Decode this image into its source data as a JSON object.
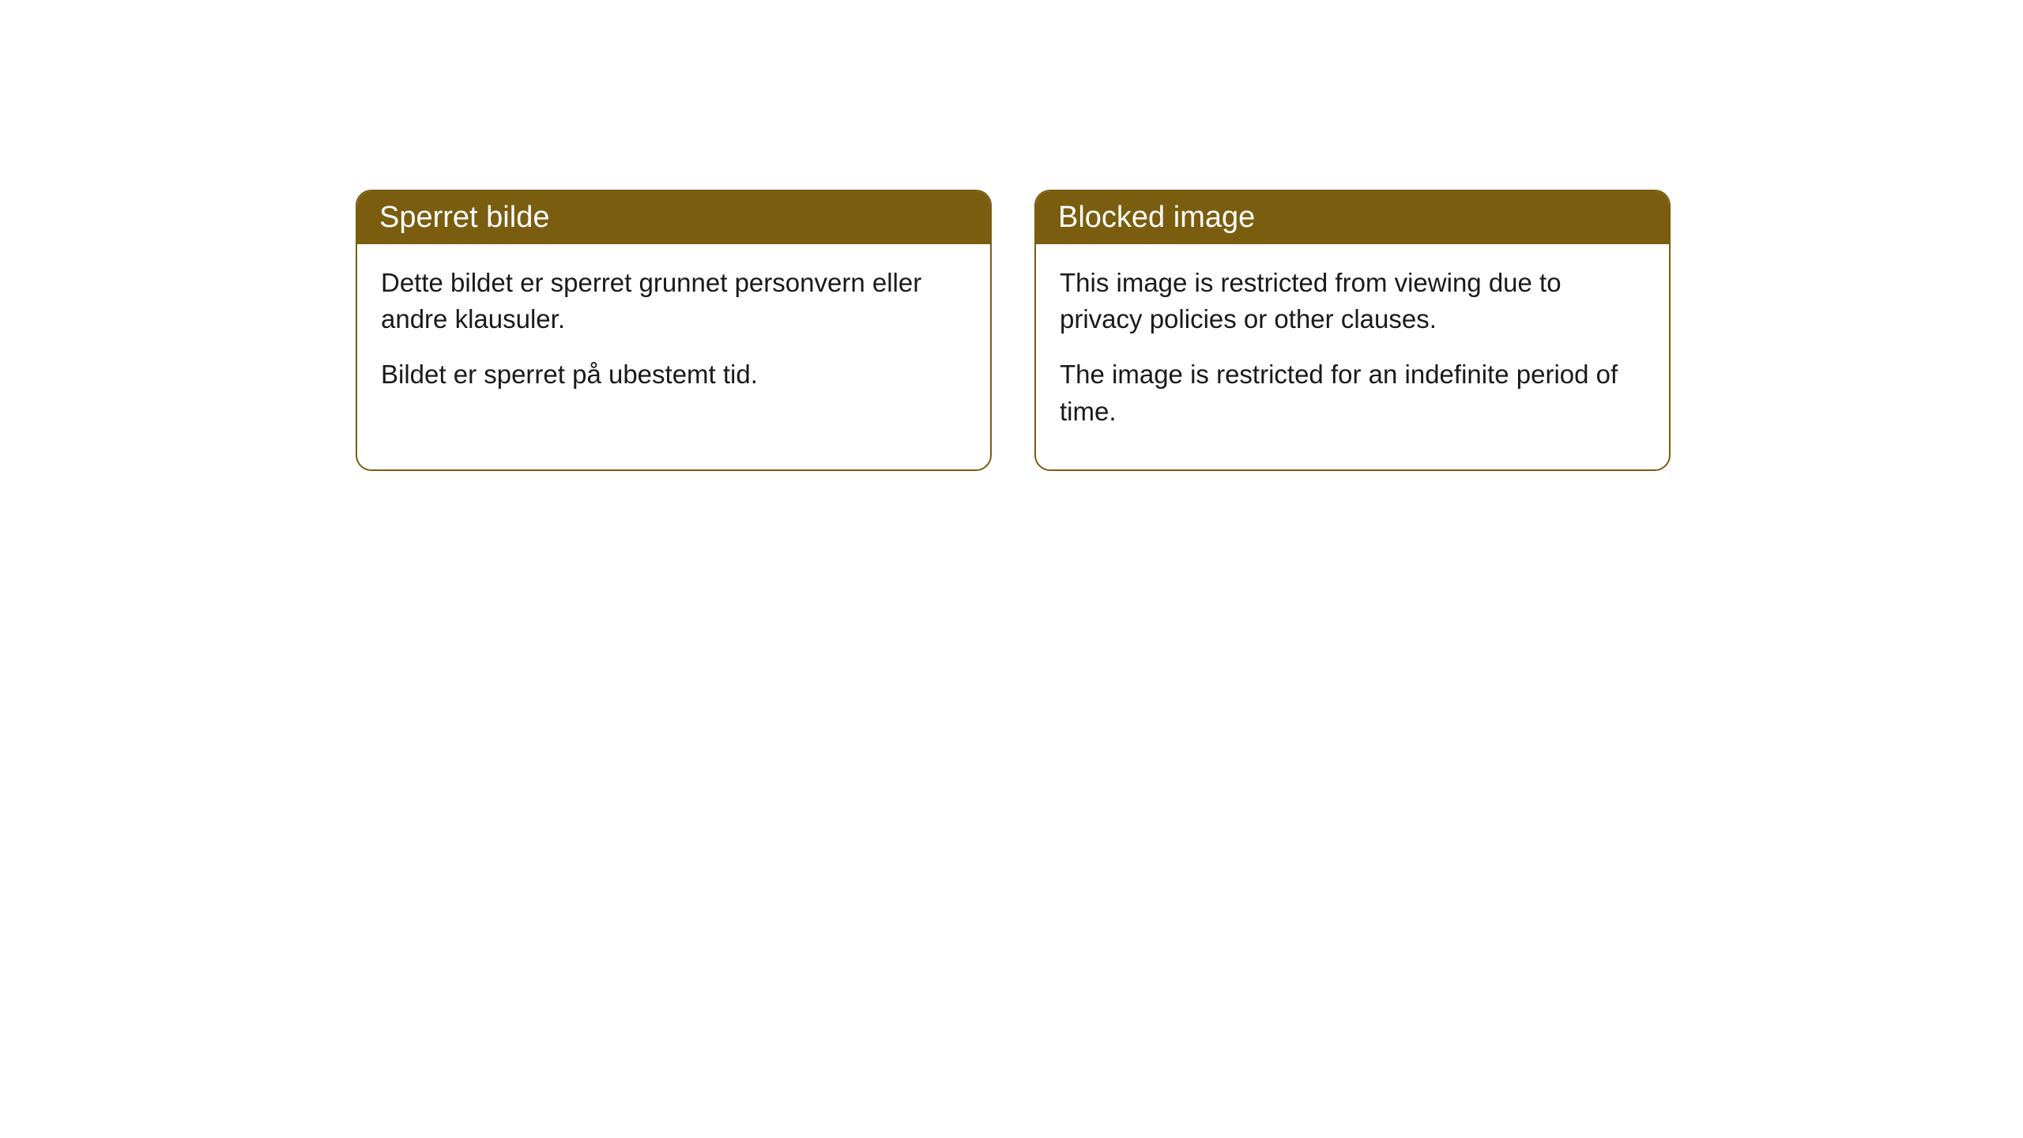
{
  "cards": [
    {
      "title": "Sperret bilde",
      "paragraph1": "Dette bildet er sperret grunnet personvern eller andre klausuler.",
      "paragraph2": "Bildet er sperret på ubestemt tid."
    },
    {
      "title": "Blocked image",
      "paragraph1": "This image is restricted from viewing due to privacy policies or other clauses.",
      "paragraph2": "The image is restricted for an indefinite period of time."
    }
  ],
  "styling": {
    "header_background": "#7a5d0f",
    "header_text_color": "#ffffff",
    "border_color": "#7a5d0f",
    "body_background": "#ffffff",
    "body_text_color": "#1a1a1a",
    "border_radius": 20,
    "title_fontsize": 38,
    "body_fontsize": 33
  }
}
